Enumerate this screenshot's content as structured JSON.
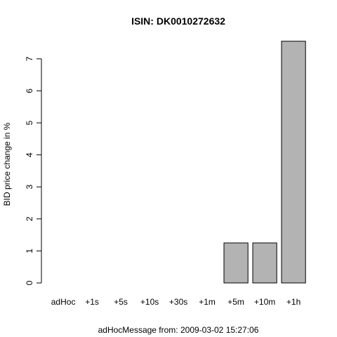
{
  "chart_data": {
    "type": "bar",
    "title": "ISIN: DK0010272632",
    "xlabel": "adHocMessage from: 2009-03-02 15:27:06",
    "ylabel": "BID price change in %",
    "categories": [
      "adHoc",
      "+1s",
      "+5s",
      "+10s",
      "+30s",
      "+1m",
      "+5m",
      "+10m",
      "+1h"
    ],
    "values": [
      0,
      0,
      0,
      0,
      0,
      0,
      1.25,
      1.25,
      7.55
    ],
    "y_ticks": [
      0,
      1,
      2,
      3,
      4,
      5,
      6,
      7
    ],
    "ylim": [
      0,
      7.55
    ],
    "bar_color": "#b3b3b3",
    "bar_border_color": "#000000",
    "grid": false,
    "legend": "none"
  }
}
